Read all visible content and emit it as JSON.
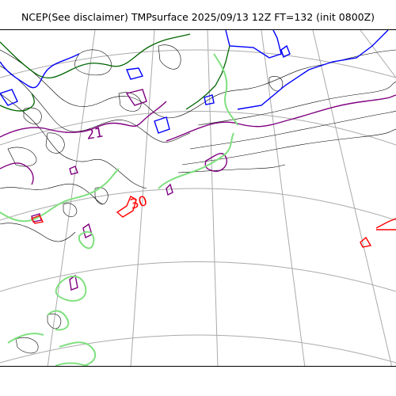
{
  "title": "NCEP(See disclaimer) TMPsurface 2025/09/13 12Z FT=132 (init 0800Z)",
  "contour_labels": [
    {
      "text": "21",
      "color": "#800080"
    },
    {
      "text": "30",
      "color": "#ff0000"
    }
  ],
  "colors": {
    "graticule": "#aaaaaa",
    "thin_contour": "#000000",
    "blue_contour": "#0000ff",
    "green_contour": "#006400",
    "purple_contour": "#800080",
    "lightgreen_contour": "#7fe07f",
    "red_contour": "#ff0000"
  }
}
